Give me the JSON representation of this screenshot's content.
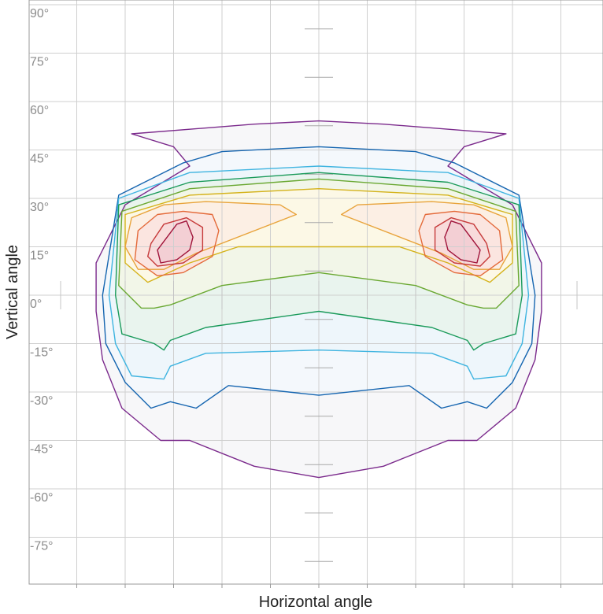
{
  "chart_data": {
    "type": "contour",
    "title": "",
    "xlabel": "Horizontal angle",
    "ylabel": "Vertical angle",
    "ylim": [
      -90,
      90
    ],
    "y_ticks": [
      90,
      75,
      60,
      45,
      30,
      15,
      0,
      -15,
      -30,
      -45,
      -60,
      -75
    ],
    "y_tick_labels": [
      "90°",
      "75°",
      "60°",
      "45°",
      "30°",
      "15°",
      "0°",
      "-15°",
      "-30°",
      "-45°",
      "-60°",
      "-75°"
    ],
    "x_ticks": [
      -60,
      -45,
      -30,
      -15,
      0,
      15,
      30,
      45,
      60
    ],
    "x_tick_labels": [],
    "xlim": [
      -90,
      90
    ],
    "grid": true,
    "contour_colors": [
      "#7b2a8c",
      "#1565b0",
      "#3fb4e0",
      "#1a9a5a",
      "#6aa832",
      "#d4b21a",
      "#e8a33a",
      "#e46a3a",
      "#c63a3a",
      "#a0143a"
    ],
    "isolines": [
      {
        "level": 1,
        "color": "#7b2a8c",
        "fill": "#f7f7f9",
        "points": [
          [
            -58,
            50
          ],
          [
            -45,
            46
          ],
          [
            -40,
            40
          ],
          [
            -60,
            28
          ],
          [
            -69,
            10
          ],
          [
            -69,
            -5
          ],
          [
            -67,
            -20
          ],
          [
            -61,
            -35
          ],
          [
            -49,
            -45
          ],
          [
            -40,
            -45
          ],
          [
            -20,
            -53
          ],
          [
            0,
            -56.5
          ],
          [
            20,
            -53
          ],
          [
            40,
            -45
          ],
          [
            49,
            -45
          ],
          [
            61,
            -35
          ],
          [
            67,
            -20
          ],
          [
            69,
            -5
          ],
          [
            69,
            10
          ],
          [
            60,
            28
          ],
          [
            40,
            40
          ],
          [
            45,
            46
          ],
          [
            58,
            50
          ],
          [
            20,
            53
          ],
          [
            0,
            54
          ],
          [
            -20,
            53
          ]
        ]
      },
      {
        "level": 2,
        "color": "#1565b0",
        "fill": "#f4f8fc",
        "points": [
          [
            -62,
            31
          ],
          [
            -42,
            41
          ],
          [
            -30,
            44.5
          ],
          [
            0,
            46
          ],
          [
            30,
            44.5
          ],
          [
            42,
            41
          ],
          [
            62,
            31
          ],
          [
            67,
            0
          ],
          [
            66,
            -15
          ],
          [
            60,
            -27
          ],
          [
            52,
            -35
          ],
          [
            46,
            -33
          ],
          [
            38,
            -35
          ],
          [
            28,
            -28
          ],
          [
            0,
            -31
          ],
          [
            -28,
            -28
          ],
          [
            -38,
            -35
          ],
          [
            -46,
            -33
          ],
          [
            -52,
            -35
          ],
          [
            -60,
            -27
          ],
          [
            -66,
            -15
          ],
          [
            -67,
            0
          ]
        ]
      },
      {
        "level": 3,
        "color": "#3fb4e0",
        "fill": "#eef6fb",
        "points": [
          [
            -62,
            30
          ],
          [
            -40,
            38
          ],
          [
            0,
            40
          ],
          [
            40,
            38
          ],
          [
            62,
            30
          ],
          [
            65,
            0
          ],
          [
            63,
            -15
          ],
          [
            58,
            -25
          ],
          [
            48,
            -26
          ],
          [
            46,
            -22
          ],
          [
            35,
            -18
          ],
          [
            0,
            -17
          ],
          [
            -35,
            -18
          ],
          [
            -46,
            -22
          ],
          [
            -48,
            -26
          ],
          [
            -58,
            -25
          ],
          [
            -63,
            -15
          ],
          [
            -65,
            0
          ]
        ]
      },
      {
        "level": 4,
        "color": "#1a9a5a",
        "fill": "#e9f4ee",
        "points": [
          [
            -62,
            28
          ],
          [
            -40,
            35
          ],
          [
            0,
            38
          ],
          [
            40,
            35
          ],
          [
            62,
            28
          ],
          [
            63,
            0
          ],
          [
            61,
            -12
          ],
          [
            51,
            -15
          ],
          [
            48,
            -17
          ],
          [
            46,
            -14
          ],
          [
            35,
            -10
          ],
          [
            0,
            -5
          ],
          [
            -35,
            -10
          ],
          [
            -46,
            -14
          ],
          [
            -48,
            -17
          ],
          [
            -51,
            -15
          ],
          [
            -61,
            -12
          ],
          [
            -63,
            0
          ]
        ]
      },
      {
        "level": 5,
        "color": "#6aa832",
        "fill": "#f2f6e8",
        "points": [
          [
            -61,
            26
          ],
          [
            -40,
            33
          ],
          [
            0,
            36
          ],
          [
            40,
            33
          ],
          [
            61,
            26
          ],
          [
            62,
            3
          ],
          [
            55,
            -4
          ],
          [
            51,
            -4
          ],
          [
            46,
            -3
          ],
          [
            30,
            3
          ],
          [
            0,
            7
          ],
          [
            -30,
            3
          ],
          [
            -46,
            -3
          ],
          [
            -51,
            -4
          ],
          [
            -55,
            -4
          ],
          [
            -62,
            3
          ]
        ]
      },
      {
        "level": 6,
        "color": "#d4b21a",
        "fill": "#fcf8e6",
        "points": [
          [
            -60,
            25
          ],
          [
            -40,
            31
          ],
          [
            0,
            33
          ],
          [
            40,
            31
          ],
          [
            60,
            25
          ],
          [
            60,
            10
          ],
          [
            53,
            4
          ],
          [
            40,
            10
          ],
          [
            25,
            15
          ],
          [
            0,
            15
          ],
          [
            -25,
            15
          ],
          [
            -40,
            10
          ],
          [
            -53,
            4
          ],
          [
            -60,
            10
          ]
        ]
      },
      {
        "level": 7,
        "color": "#e8a33a",
        "fill": "#fcefe4",
        "points": [
          [
            -58,
            24
          ],
          [
            -48,
            28
          ],
          [
            -35,
            29
          ],
          [
            -12,
            28
          ],
          [
            -7,
            25
          ],
          [
            -38,
            13
          ],
          [
            -48,
            8
          ],
          [
            -56,
            8
          ],
          [
            -60,
            15
          ]
        ]
      },
      {
        "level": 7,
        "color": "#e8a33a",
        "fill": "#fcefe4",
        "points": [
          [
            58,
            24
          ],
          [
            48,
            28
          ],
          [
            35,
            29
          ],
          [
            12,
            28
          ],
          [
            7,
            25
          ],
          [
            38,
            13
          ],
          [
            48,
            8
          ],
          [
            56,
            8
          ],
          [
            60,
            15
          ]
        ]
      },
      {
        "level": 8,
        "color": "#e46a3a",
        "fill": "#fbe5e0",
        "points": [
          [
            -56,
            20
          ],
          [
            -50,
            25
          ],
          [
            -42,
            26
          ],
          [
            -33,
            25
          ],
          [
            -31,
            20
          ],
          [
            -33,
            12
          ],
          [
            -42,
            7
          ],
          [
            -50,
            6
          ],
          [
            -57,
            11
          ]
        ]
      },
      {
        "level": 8,
        "color": "#e46a3a",
        "fill": "#fbe5e0",
        "points": [
          [
            56,
            20
          ],
          [
            50,
            25
          ],
          [
            42,
            26
          ],
          [
            33,
            25
          ],
          [
            31,
            20
          ],
          [
            33,
            12
          ],
          [
            42,
            7
          ],
          [
            50,
            6
          ],
          [
            57,
            11
          ]
        ]
      },
      {
        "level": 9,
        "color": "#c63a3a",
        "fill": "#f8dbdb",
        "points": [
          [
            -52,
            16
          ],
          [
            -48,
            22
          ],
          [
            -41,
            24
          ],
          [
            -36,
            21
          ],
          [
            -36,
            14
          ],
          [
            -42,
            10
          ],
          [
            -50,
            9
          ],
          [
            -53,
            12
          ]
        ]
      },
      {
        "level": 9,
        "color": "#c63a3a",
        "fill": "#f8dbdb",
        "points": [
          [
            52,
            16
          ],
          [
            48,
            22
          ],
          [
            41,
            24
          ],
          [
            36,
            21
          ],
          [
            36,
            14
          ],
          [
            42,
            10
          ],
          [
            50,
            9
          ],
          [
            53,
            12
          ]
        ]
      },
      {
        "level": 10,
        "color": "#a0143a",
        "fill": "#f3cfd4",
        "points": [
          [
            -50,
            14
          ],
          [
            -47,
            18
          ],
          [
            -44,
            22
          ],
          [
            -41,
            23
          ],
          [
            -39,
            18
          ],
          [
            -40,
            14
          ],
          [
            -44,
            11
          ],
          [
            -49,
            10
          ]
        ]
      },
      {
        "level": 10,
        "color": "#a0143a",
        "fill": "#f3cfd4",
        "points": [
          [
            50,
            14
          ],
          [
            47,
            18
          ],
          [
            44,
            22
          ],
          [
            41,
            23
          ],
          [
            39,
            18
          ],
          [
            40,
            14
          ],
          [
            44,
            11
          ],
          [
            49,
            10
          ]
        ]
      }
    ]
  }
}
